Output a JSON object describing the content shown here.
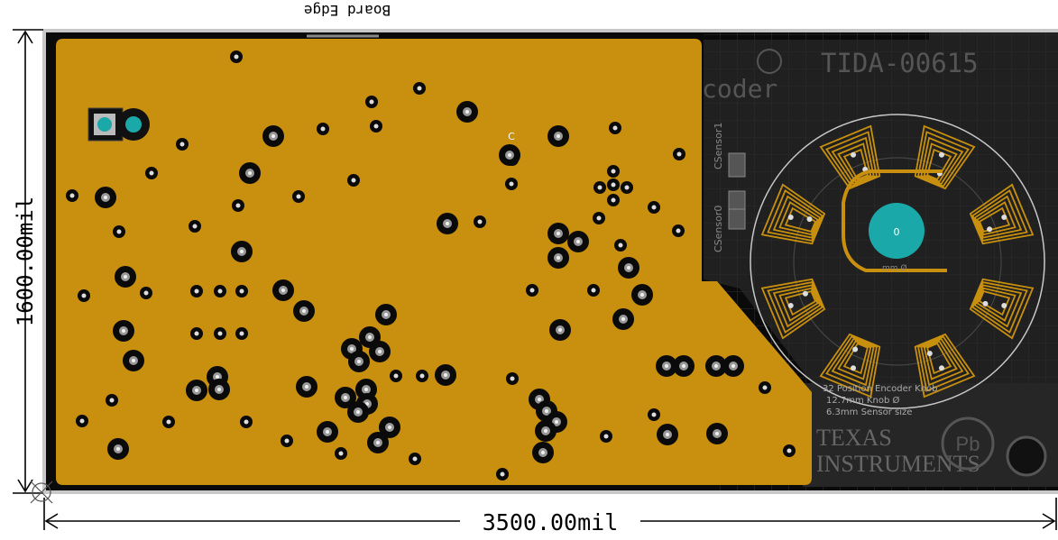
{
  "board_edge_label": "Board Edge",
  "dimensions": {
    "width_label": "3500.00mil",
    "height_label": "1600.00mil"
  },
  "silkscreen": {
    "part_number": "TIDA-00615",
    "coder_text": "coder",
    "sensor_labels": [
      "CSensor0",
      "CSensor1"
    ],
    "marker_c": "C",
    "knob_label": "0",
    "diameter_label": "mm Ø",
    "notes": [
      "32 Position Encoder Knob",
      "12.7mm Knob Ø",
      "6.3mm Sensor size"
    ],
    "logo_line1": "TEXAS",
    "logo_line2": "INSTRUMENTS"
  },
  "colors": {
    "copper": "#c8900e",
    "board": "#0a0a0a",
    "pad": "#1ba8a8",
    "silk": "#c8c8c8"
  }
}
